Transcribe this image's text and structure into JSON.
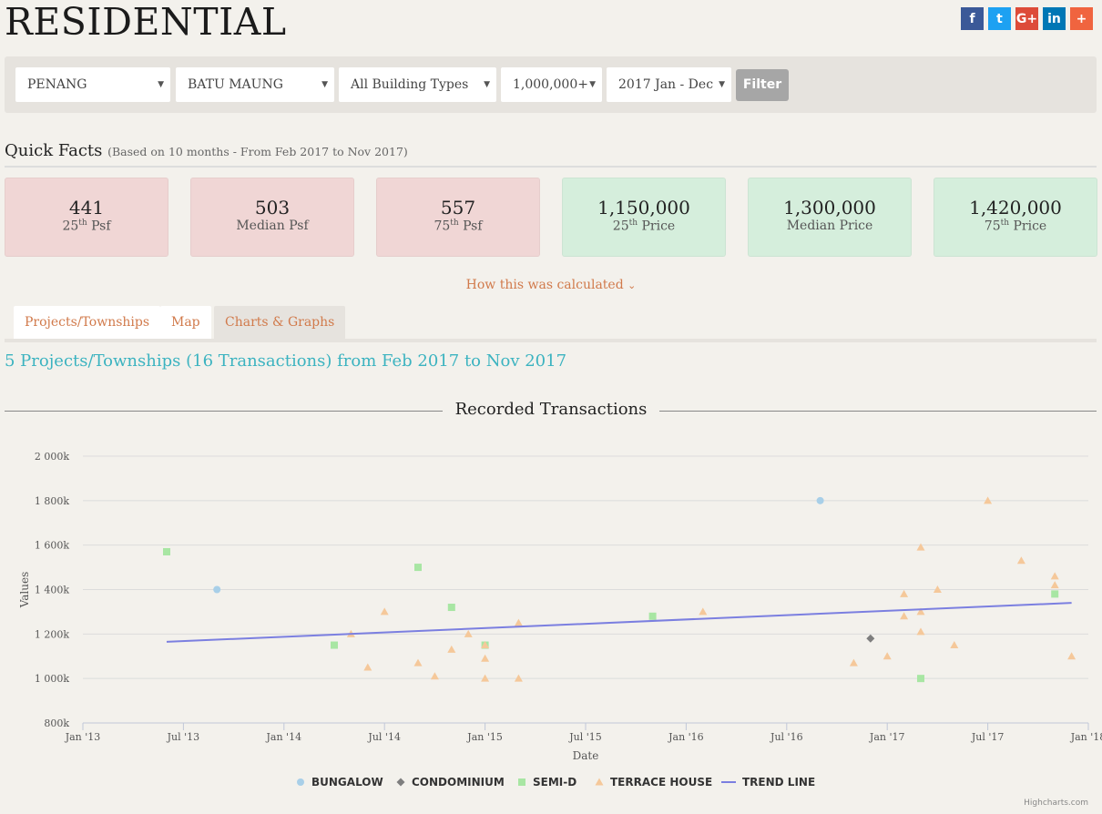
{
  "page": {
    "title": "RESIDENTIAL"
  },
  "social": [
    {
      "name": "facebook",
      "glyph": "f",
      "color": "#3b5998"
    },
    {
      "name": "twitter",
      "glyph": "t",
      "color": "#1da1f2"
    },
    {
      "name": "google-plus",
      "glyph": "G+",
      "color": "#dd4b39"
    },
    {
      "name": "linkedin",
      "glyph": "in",
      "color": "#0077b5"
    },
    {
      "name": "share-plus",
      "glyph": "+",
      "color": "#f0643f"
    }
  ],
  "filters": {
    "state": "PENANG",
    "area": "BATU MAUNG",
    "building_type": "All Building Types",
    "price": "1,000,000+",
    "period": "2017 Jan - Dec",
    "button": "Filter"
  },
  "quick_facts": {
    "title": "Quick Facts",
    "subtitle": "(Based on 10 months - From Feb 2017 to Nov 2017)",
    "stats": [
      {
        "value": "441",
        "ord": "25",
        "sup": "th",
        "label": " Psf",
        "tone": "pink"
      },
      {
        "value": "503",
        "ord": "",
        "sup": "",
        "label": "Median Psf",
        "tone": "pink"
      },
      {
        "value": "557",
        "ord": "75",
        "sup": "th",
        "label": " Psf",
        "tone": "pink"
      },
      {
        "value": "1,150,000",
        "ord": "25",
        "sup": "th",
        "label": " Price",
        "tone": "green"
      },
      {
        "value": "1,300,000",
        "ord": "",
        "sup": "",
        "label": "Median Price",
        "tone": "green"
      },
      {
        "value": "1,420,000",
        "ord": "75",
        "sup": "th",
        "label": " Price",
        "tone": "green"
      }
    ],
    "how_link": "How this was calculated"
  },
  "tabs": [
    {
      "label": "Projects/Townships",
      "active": false
    },
    {
      "label": "Map",
      "active": false
    },
    {
      "label": "Charts & Graphs",
      "active": true
    }
  ],
  "projects_heading": "5 Projects/Townships (16 Transactions) from Feb 2017 to Nov 2017",
  "chart_data": {
    "type": "scatter",
    "title": "Recorded Transactions",
    "xlabel": "Date",
    "ylabel": "Values",
    "x_ticks": [
      "Jan '13",
      "Jul '13",
      "Jan '14",
      "Jul '14",
      "Jan '15",
      "Jul '15",
      "Jan '16",
      "Jul '16",
      "Jan '17",
      "Jul '17",
      "Jan '18"
    ],
    "x_range": [
      "2013-01",
      "2018-01"
    ],
    "y_ticks": [
      "800k",
      "1 000k",
      "1 200k",
      "1 400k",
      "1 600k",
      "1 800k",
      "2 000k"
    ],
    "ylim": [
      800,
      2000
    ],
    "y_unit": "k",
    "grid": true,
    "legend_position": "bottom",
    "series": [
      {
        "name": "BUNGALOW",
        "marker": "circle",
        "color": "#a8cfe8",
        "points": [
          [
            "2013-09",
            1400
          ],
          [
            "2016-09",
            1800
          ]
        ]
      },
      {
        "name": "CONDOMINIUM",
        "marker": "diamond",
        "color": "#7e7e7e",
        "points": [
          [
            "2016-12",
            1180
          ]
        ]
      },
      {
        "name": "SEMI-D",
        "marker": "square",
        "color": "#a8e6a3",
        "points": [
          [
            "2013-06",
            1570
          ],
          [
            "2014-04",
            1150
          ],
          [
            "2014-09",
            1500
          ],
          [
            "2014-11",
            1320
          ],
          [
            "2015-01",
            1150
          ],
          [
            "2015-11",
            1280
          ],
          [
            "2017-03",
            1000
          ],
          [
            "2017-11",
            1380
          ]
        ]
      },
      {
        "name": "TERRACE HOUSE",
        "marker": "triangle",
        "color": "#f5c89a",
        "points": [
          [
            "2014-05",
            1200
          ],
          [
            "2014-06",
            1050
          ],
          [
            "2014-07",
            1300
          ],
          [
            "2014-09",
            1070
          ],
          [
            "2014-10",
            1010
          ],
          [
            "2014-11",
            1130
          ],
          [
            "2014-12",
            1200
          ],
          [
            "2015-01",
            1090
          ],
          [
            "2015-01",
            1000
          ],
          [
            "2015-01",
            1150
          ],
          [
            "2015-03",
            1250
          ],
          [
            "2015-03",
            1000
          ],
          [
            "2016-02",
            1300
          ],
          [
            "2016-11",
            1070
          ],
          [
            "2017-01",
            1100
          ],
          [
            "2017-02",
            1280
          ],
          [
            "2017-02",
            1380
          ],
          [
            "2017-03",
            1590
          ],
          [
            "2017-03",
            1300
          ],
          [
            "2017-03",
            1210
          ],
          [
            "2017-04",
            1400
          ],
          [
            "2017-05",
            1150
          ],
          [
            "2017-07",
            1800
          ],
          [
            "2017-09",
            1530
          ],
          [
            "2017-11",
            1460
          ],
          [
            "2017-11",
            1420
          ],
          [
            "2017-12",
            1100
          ]
        ]
      },
      {
        "name": "TREND LINE",
        "marker": "line",
        "color": "#7b7fe0",
        "points": [
          [
            "2013-06",
            1165
          ],
          [
            "2017-12",
            1340
          ]
        ]
      }
    ],
    "credits": "Highcharts.com"
  }
}
